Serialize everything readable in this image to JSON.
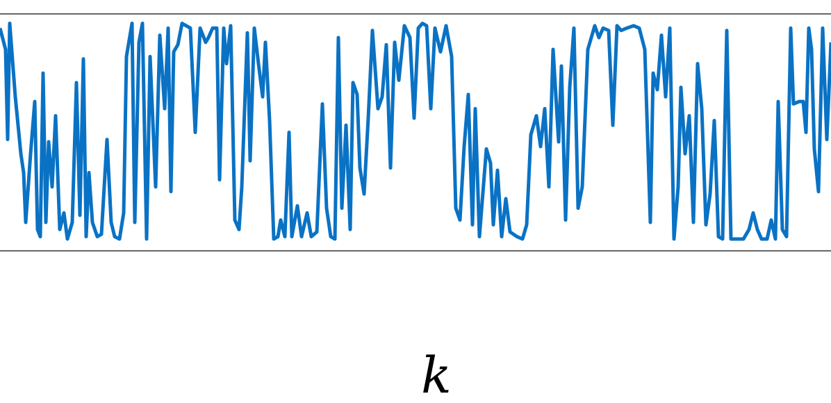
{
  "chart_data": {
    "type": "line",
    "xlabel": "k",
    "xlim": [
      0,
      1196
    ],
    "ylim": [
      0,
      1
    ],
    "color": "#0a72c4",
    "x": [
      0,
      8,
      11,
      14,
      22,
      30,
      34,
      37,
      44,
      50,
      54,
      58,
      62,
      66,
      70,
      75,
      80,
      86,
      92,
      97,
      104,
      110,
      115,
      120,
      124,
      128,
      133,
      140,
      146,
      154,
      160,
      165,
      172,
      178,
      182,
      190,
      194,
      200,
      205,
      211,
      216,
      224,
      230,
      237,
      242,
      246,
      250,
      256,
      262,
      268,
      274,
      281,
      288,
      296,
      300,
      306,
      312,
      316,
      322,
      326,
      332,
      338,
      344,
      348,
      356,
      360,
      366,
      372,
      378,
      382,
      388,
      394,
      400,
      404,
      410,
      416,
      420,
      428,
      434,
      442,
      448,
      456,
      464,
      470,
      476,
      482,
      487,
      492,
      498,
      504,
      508,
      514,
      518,
      524,
      530,
      536,
      544,
      550,
      556,
      562,
      568,
      574,
      582,
      590,
      596,
      602,
      608,
      614,
      620,
      626,
      634,
      642,
      650,
      656,
      662,
      668,
      674,
      680,
      684,
      690,
      700,
      706,
      710,
      716,
      722,
      728,
      734,
      744,
      752,
      758,
      764,
      772,
      778,
      784,
      790,
      796,
      804,
      808,
      814,
      820,
      826,
      832,
      838,
      846,
      856,
      862,
      868,
      876,
      882,
      888,
      894,
      902,
      912,
      920,
      928,
      936,
      940,
      946,
      952,
      958,
      964,
      970,
      976,
      980,
      986,
      992,
      998,
      1004,
      1010,
      1016,
      1022,
      1028,
      1034,
      1040,
      1046,
      1052,
      1060,
      1070,
      1078,
      1084,
      1090,
      1096,
      1104,
      1110,
      1116,
      1120,
      1126,
      1132,
      1138,
      1142,
      1150,
      1156,
      1160,
      1164,
      1168,
      1172,
      1178,
      1184,
      1190,
      1196
    ],
    "values": [
      0.94,
      0.85,
      0.47,
      0.96,
      0.65,
      0.41,
      0.33,
      0.12,
      0.41,
      0.63,
      0.09,
      0.06,
      0.75,
      0.12,
      0.46,
      0.27,
      0.57,
      0.09,
      0.16,
      0.05,
      0.12,
      0.71,
      0.15,
      0.81,
      0.06,
      0.33,
      0.12,
      0.06,
      0.07,
      0.47,
      0.12,
      0.06,
      0.05,
      0.16,
      0.82,
      0.96,
      0.12,
      0.88,
      0.96,
      0.05,
      0.82,
      0.27,
      0.91,
      0.6,
      0.94,
      0.25,
      0.84,
      0.87,
      0.96,
      0.95,
      0.94,
      0.5,
      0.94,
      0.88,
      0.9,
      0.94,
      0.94,
      0.3,
      0.94,
      0.79,
      0.95,
      0.13,
      0.09,
      0.27,
      0.92,
      0.38,
      0.94,
      0.79,
      0.65,
      0.88,
      0.55,
      0.05,
      0.06,
      0.13,
      0.06,
      0.5,
      0.06,
      0.19,
      0.06,
      0.16,
      0.06,
      0.08,
      0.62,
      0.18,
      0.06,
      0.05,
      0.9,
      0.18,
      0.53,
      0.09,
      0.71,
      0.66,
      0.35,
      0.24,
      0.56,
      0.93,
      0.6,
      0.65,
      0.87,
      0.35,
      0.88,
      0.72,
      0.95,
      0.9,
      0.56,
      0.94,
      0.96,
      0.95,
      0.6,
      0.94,
      0.84,
      0.95,
      0.82,
      0.18,
      0.13,
      0.44,
      0.66,
      0.11,
      0.6,
      0.06,
      0.43,
      0.37,
      0.11,
      0.34,
      0.06,
      0.22,
      0.08,
      0.06,
      0.05,
      0.11,
      0.49,
      0.57,
      0.44,
      0.6,
      0.27,
      0.85,
      0.46,
      0.78,
      0.13,
      0.69,
      0.94,
      0.18,
      0.27,
      0.85,
      0.95,
      0.9,
      0.94,
      0.93,
      0.53,
      0.95,
      0.93,
      0.94,
      0.95,
      0.94,
      0.85,
      0.12,
      0.75,
      0.68,
      0.91,
      0.65,
      0.94,
      0.05,
      0.27,
      0.69,
      0.41,
      0.57,
      0.12,
      0.79,
      0.6,
      0.11,
      0.24,
      0.55,
      0.06,
      0.05,
      0.93,
      0.05,
      0.05,
      0.05,
      0.09,
      0.16,
      0.09,
      0.05,
      0.05,
      0.13,
      0.05,
      0.63,
      0.09,
      0.06,
      0.94,
      0.62,
      0.63,
      0.63,
      0.5,
      0.94,
      0.85,
      0.43,
      0.25,
      0.94,
      0.47,
      0.88
    ]
  }
}
